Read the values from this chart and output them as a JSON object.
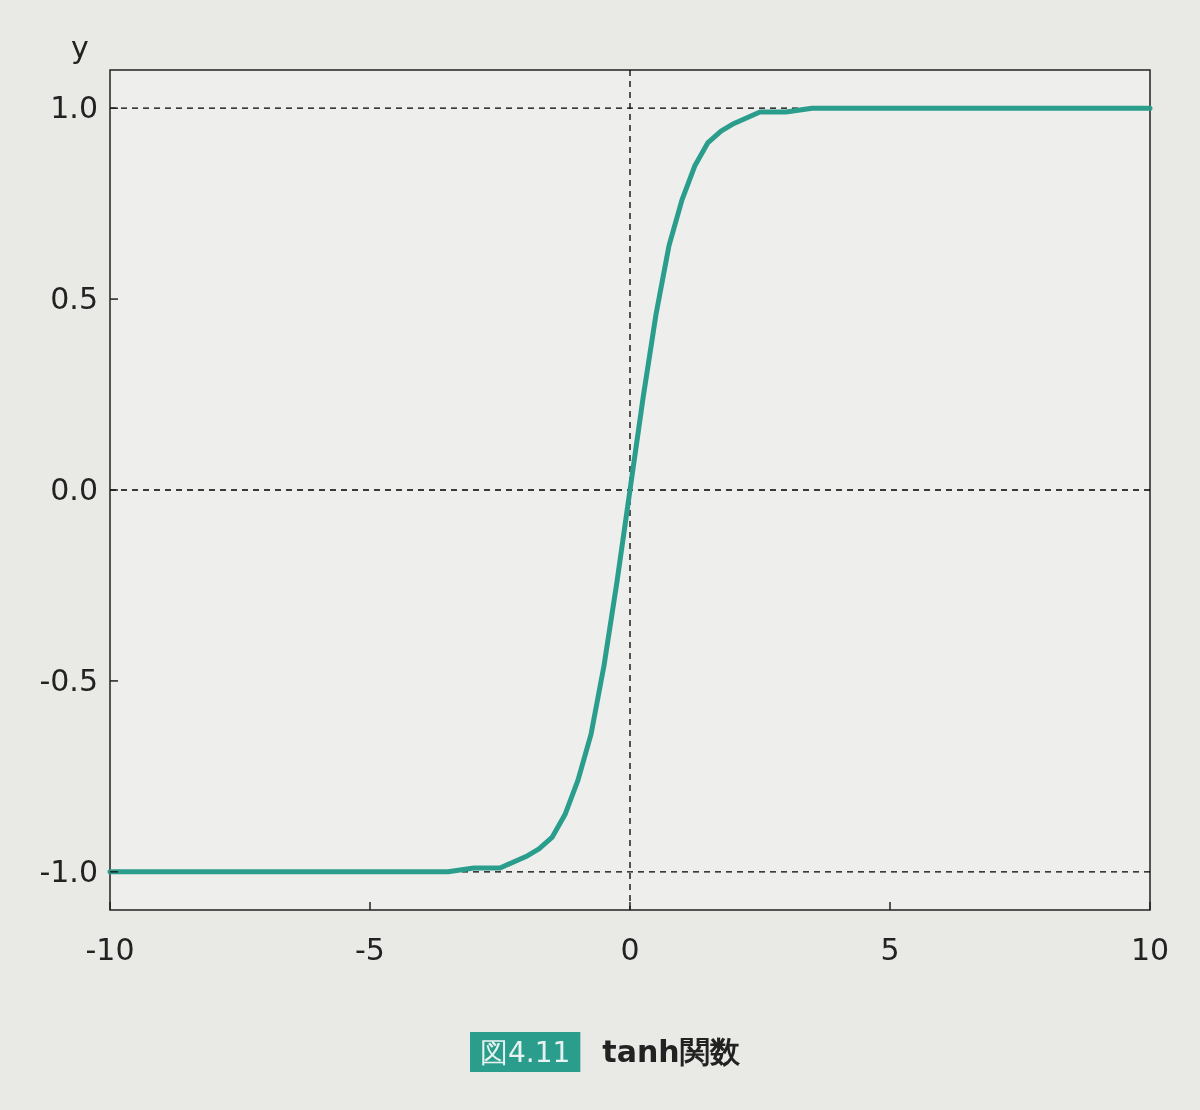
{
  "chart_data": {
    "type": "line",
    "title": "tanh関数",
    "ylabel": "y",
    "annotations": [
      "図4.11"
    ],
    "x": [
      -10,
      -8,
      -6,
      -5,
      -4,
      -3.5,
      -3,
      -2.5,
      -2,
      -1.75,
      -1.5,
      -1.25,
      -1,
      -0.75,
      -0.5,
      -0.25,
      0,
      0.25,
      0.5,
      0.75,
      1,
      1.25,
      1.5,
      1.75,
      2,
      2.5,
      3,
      3.5,
      4,
      5,
      6,
      8,
      10
    ],
    "series": [
      {
        "color": "#2a9d8c",
        "values": [
          -1.0,
          -1.0,
          -1.0,
          -1.0,
          -1.0,
          -1.0,
          -0.99,
          -0.99,
          -0.96,
          -0.94,
          -0.91,
          -0.85,
          -0.76,
          -0.64,
          -0.46,
          -0.24,
          0.0,
          0.24,
          0.46,
          0.64,
          0.76,
          0.85,
          0.91,
          0.94,
          0.96,
          0.99,
          0.99,
          1.0,
          1.0,
          1.0,
          1.0,
          1.0,
          1.0
        ]
      }
    ],
    "xlim": [
      -10,
      10
    ],
    "xticks": [
      -10,
      -5,
      0,
      5,
      10
    ],
    "ylim": [
      -1.1,
      1.1
    ],
    "yticks": [
      {
        "value": -1,
        "label": "-1.0"
      },
      {
        "value": -0.5,
        "label": "-0.5"
      },
      {
        "value": 0,
        "label": "0.0"
      },
      {
        "value": 0.5,
        "label": "0.5"
      },
      {
        "value": 1,
        "label": "1.0"
      }
    ],
    "ref_lines": [
      {
        "axis": "y",
        "value": 1,
        "color": "#000000",
        "line_style": "dashed"
      },
      {
        "axis": "y",
        "value": 0,
        "color": "#000000",
        "line_style": "dashed"
      },
      {
        "axis": "y",
        "value": -1,
        "color": "#000000",
        "line_style": "dashed"
      },
      {
        "axis": "x",
        "value": 0,
        "color": "#000000",
        "line_style": "dashed"
      }
    ],
    "grid": false,
    "marker": "none",
    "line_style": "solid"
  }
}
